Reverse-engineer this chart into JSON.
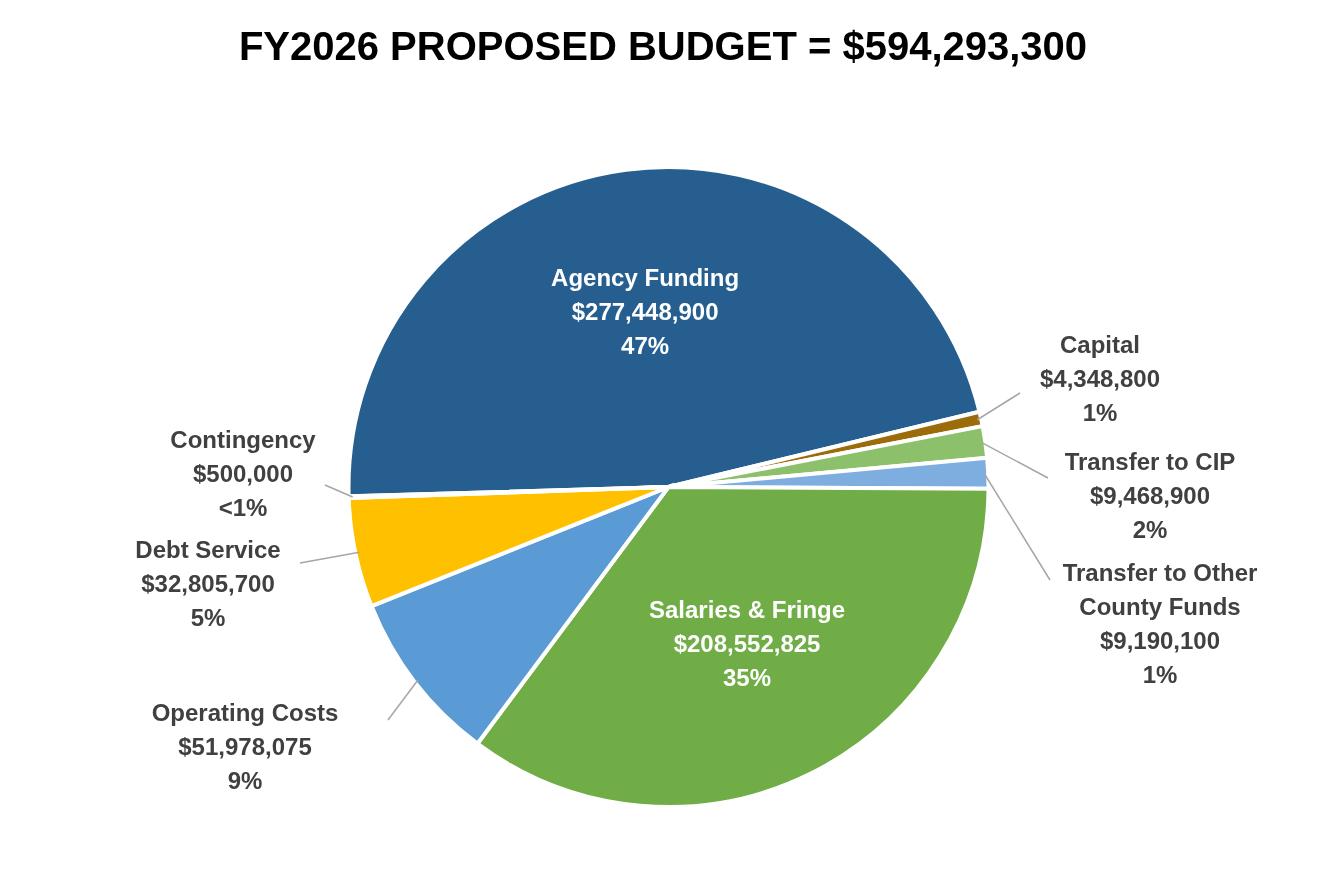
{
  "chart_data": {
    "type": "pie",
    "title": "FY2026 PROPOSED BUDGET = $594,293,300",
    "categories": [
      "Agency Funding",
      "Capital",
      "Transfer to CIP",
      "Transfer to Other County Funds",
      "Salaries & Fringe",
      "Operating Costs",
      "Debt Service",
      "Contingency"
    ],
    "values": [
      277448900,
      4348800,
      9468900,
      9190100,
      208552825,
      51978075,
      32805700,
      500000
    ],
    "colors": [
      "#265f8f",
      "#9c6b0a",
      "#8dc06a",
      "#7eaee0",
      "#70ad47",
      "#5b9bd5",
      "#ffc000",
      "#a5a5a5"
    ],
    "value_labels": [
      "$277,448,900\n47%",
      "$4,348,800\n1%",
      "$9,468,900\n2%",
      "$9,190,100\n1%",
      "$208,552,825\n35%",
      "$51,978,075\n9%",
      "$32,805,700\n5%",
      "$500,000\n<1%"
    ]
  }
}
